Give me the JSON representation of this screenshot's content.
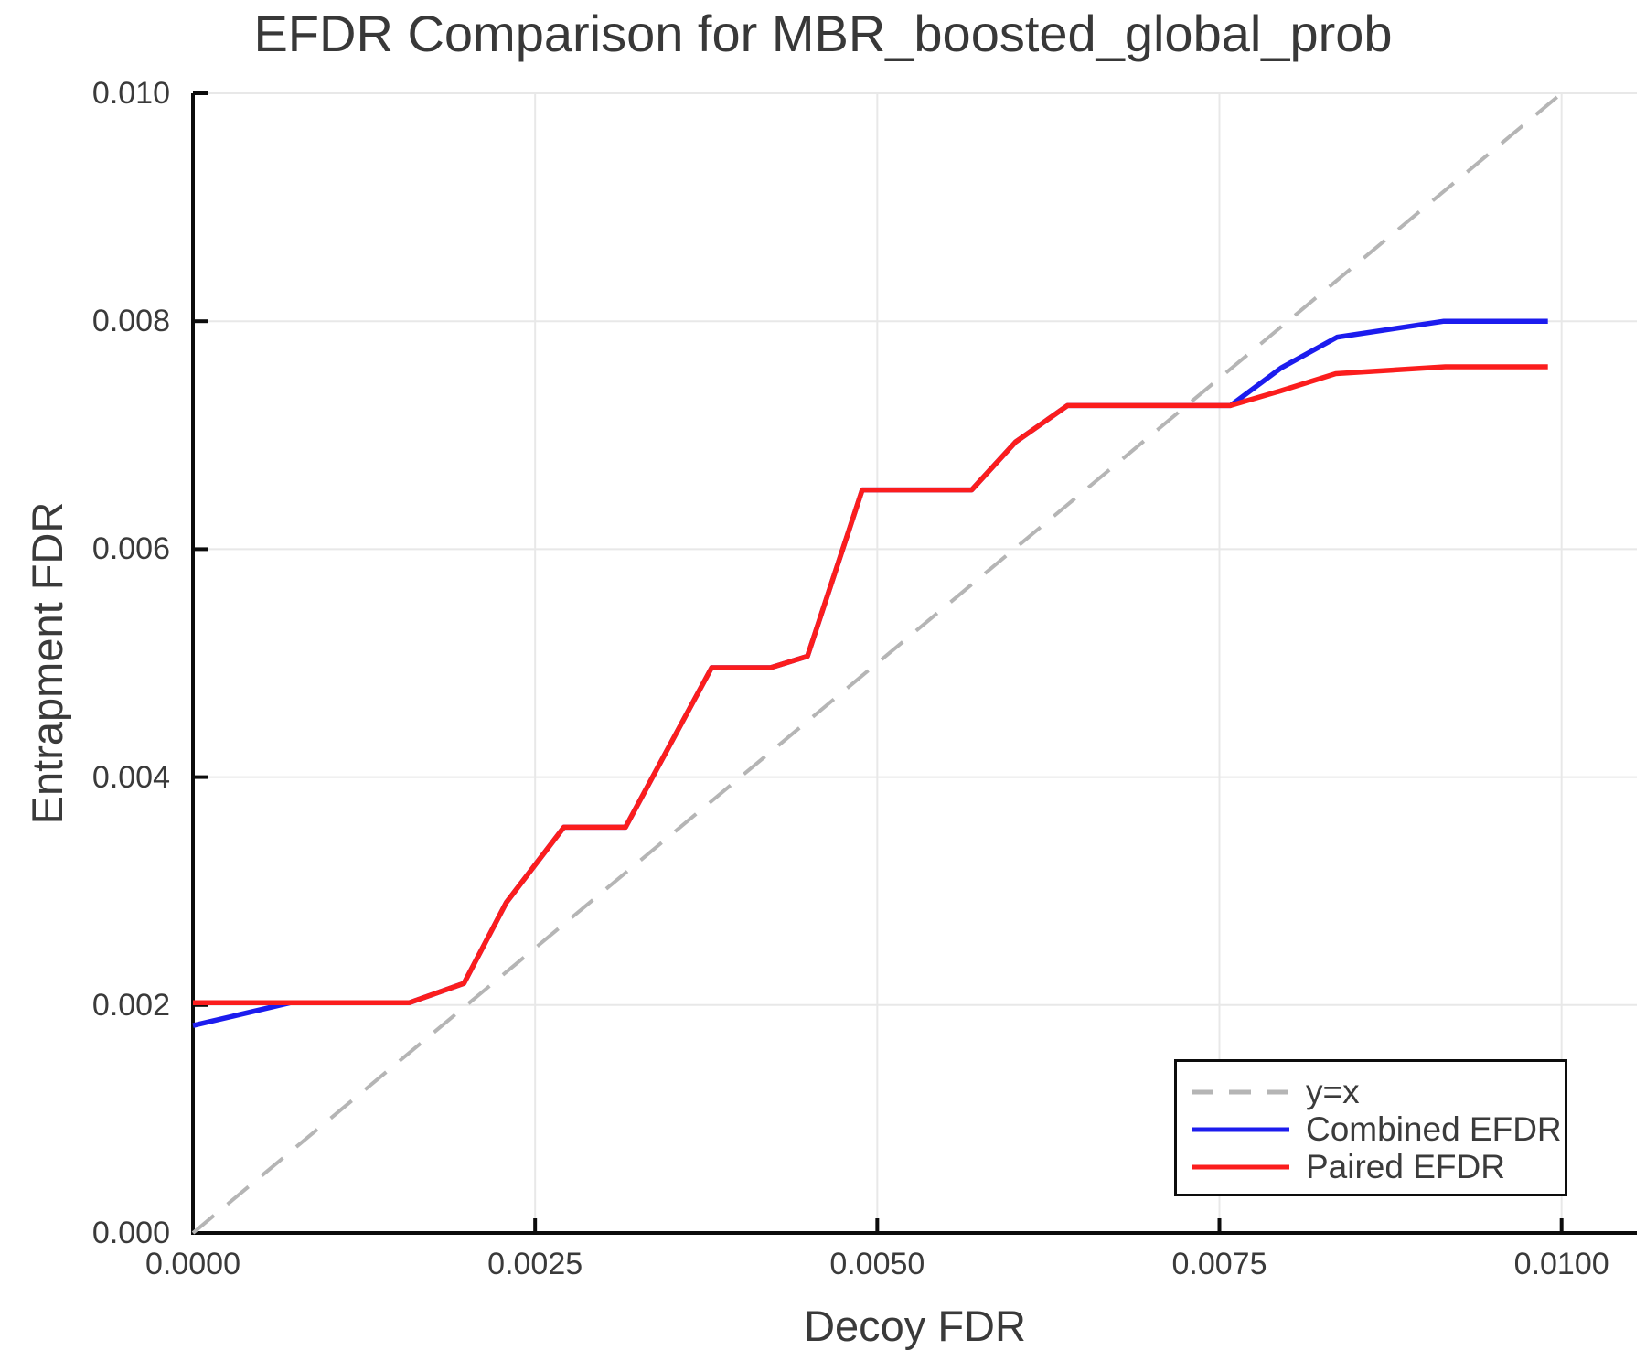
{
  "figure": {
    "title": "EFDR Comparison for MBR_boosted_global_prob",
    "xlabel": "Decoy FDR",
    "ylabel": "Entrapment FDR"
  },
  "palette": {
    "grid": "#e8e8e8",
    "spine": "#0c0c0c",
    "tick_mark": "#0c0c0c",
    "text": "#3a3a3a",
    "background": "#ffffff",
    "legend_border": "#0d0d0d"
  },
  "chart_data": {
    "type": "line",
    "title": "EFDR Comparison for MBR_boosted_global_prob",
    "xlabel": "Decoy FDR",
    "ylabel": "Entrapment FDR",
    "xlim": [
      0,
      0.01055
    ],
    "ylim": [
      0,
      0.01
    ],
    "grid": true,
    "legend_position": "lower right",
    "xticks": {
      "values": [
        0.0,
        0.0025,
        0.005,
        0.0075,
        0.01
      ],
      "labels": [
        "0.0000",
        "0.0025",
        "0.0050",
        "0.0075",
        "0.0100"
      ]
    },
    "yticks": {
      "values": [
        0.0,
        0.002,
        0.004,
        0.006,
        0.008,
        0.01
      ],
      "labels": [
        "0.000",
        "0.002",
        "0.004",
        "0.006",
        "0.008",
        "0.010"
      ]
    },
    "series": [
      {
        "key": "identity",
        "name": "y=x",
        "color": "#b5b5b5",
        "style": "dashed",
        "line_width": 4,
        "x": [
          0.0,
          0.01
        ],
        "y": [
          0.0,
          0.01
        ]
      },
      {
        "key": "combined",
        "name": "Combined EFDR",
        "color": "#1c1cee",
        "style": "solid",
        "line_width": 5.5,
        "x": [
          0.0,
          0.00071,
          0.00158,
          0.00198,
          0.00229,
          0.00271,
          0.00316,
          0.00379,
          0.00422,
          0.00449,
          0.00489,
          0.00569,
          0.00601,
          0.00639,
          0.00758,
          0.00795,
          0.00836,
          0.00914,
          0.0099
        ],
        "y": [
          0.00182,
          0.00202,
          0.00202,
          0.00219,
          0.0029,
          0.00356,
          0.00356,
          0.00496,
          0.00496,
          0.00506,
          0.00652,
          0.00652,
          0.00694,
          0.00726,
          0.00726,
          0.00759,
          0.00786,
          0.008,
          0.008
        ]
      },
      {
        "key": "paired",
        "name": "Paired EFDR",
        "color": "#fb1d1d",
        "style": "solid",
        "line_width": 5.5,
        "x": [
          0.0,
          0.00158,
          0.00198,
          0.00229,
          0.00271,
          0.00316,
          0.00379,
          0.00422,
          0.00449,
          0.00489,
          0.00569,
          0.00601,
          0.00639,
          0.00758,
          0.00795,
          0.00835,
          0.00915,
          0.0099
        ],
        "y": [
          0.00202,
          0.00202,
          0.00219,
          0.0029,
          0.00356,
          0.00356,
          0.00496,
          0.00496,
          0.00506,
          0.00652,
          0.00652,
          0.00694,
          0.00726,
          0.00726,
          0.00739,
          0.00754,
          0.0076,
          0.0076
        ]
      }
    ]
  }
}
